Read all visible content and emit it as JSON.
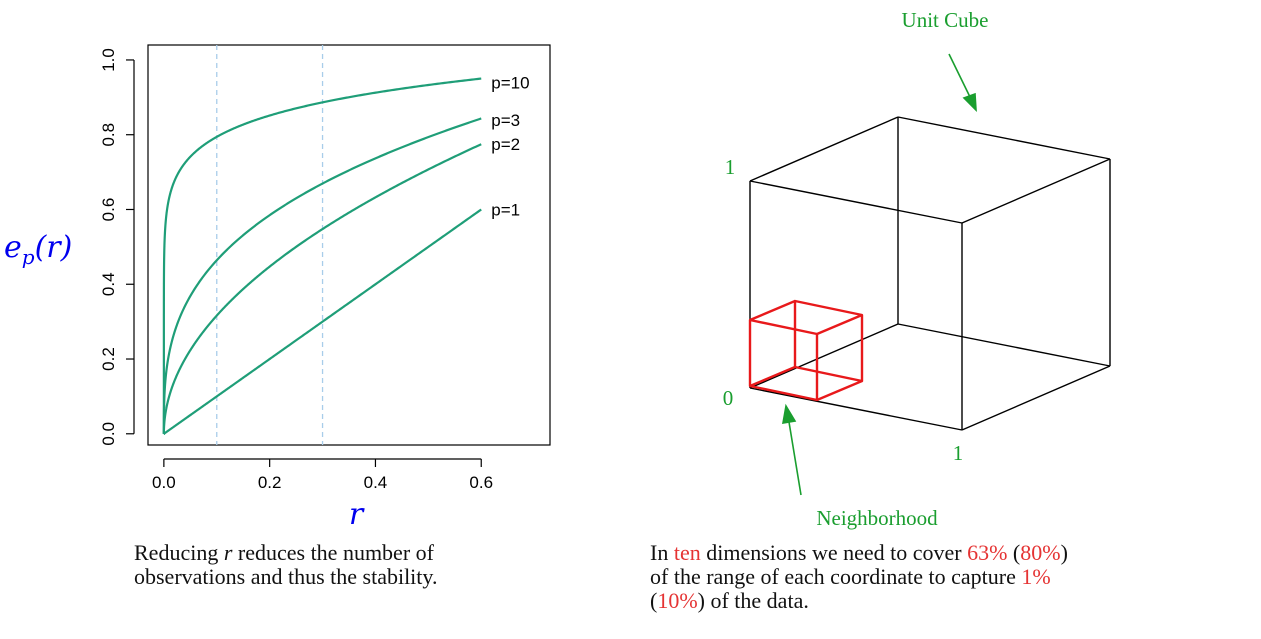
{
  "chart_data": {
    "type": "line",
    "ylabel_main": "e",
    "ylabel_sub": "p",
    "ylabel_arg": "(r)",
    "xlabel": "r",
    "xlim": [
      -0.03,
      0.73
    ],
    "ylim": [
      -0.03,
      1.04
    ],
    "xticks": [
      0.0,
      0.2,
      0.4,
      0.6
    ],
    "xtick_labels": [
      "0.0",
      "0.2",
      "0.4",
      "0.6"
    ],
    "yticks": [
      0.0,
      0.2,
      0.4,
      0.6,
      0.8,
      1.0
    ],
    "ytick_labels": [
      "0.0",
      "0.2",
      "0.4",
      "0.6",
      "0.8",
      "1.0"
    ],
    "vlines": [
      0.1,
      0.3
    ],
    "line_color": "#1f9e78",
    "vline_color": "#a8cdea",
    "formula": "e_p(r) = r^(1/p)",
    "x_domain": [
      0,
      0.6
    ],
    "series": [
      {
        "name": "p=10",
        "p": 10,
        "label_y": 0.94
      },
      {
        "name": "p=3",
        "p": 3,
        "label_y": 0.84
      },
      {
        "name": "p=2",
        "p": 2,
        "label_y": 0.775
      },
      {
        "name": "p=1",
        "p": 1,
        "label_y": 0.6
      }
    ]
  },
  "cube": {
    "unit_label": "Unit Cube",
    "neighborhood_label": "Neighborhood",
    "label_top_one": "1",
    "label_zero": "0",
    "label_bottom_one": "1",
    "cube_color": "#000000",
    "neighborhood_color": "#e8191b",
    "label_color": "#1a9e2f"
  },
  "captions": {
    "left": {
      "line1_a": "Reducing ",
      "line1_r": "r",
      "line1_b": " reduces the number of",
      "line2": "observations and thus the stability."
    },
    "right": {
      "l1_a": "In ",
      "l1_ten": "ten",
      "l1_b": " dimensions we need to cover ",
      "l1_63": "63%",
      "l1_c": " (",
      "l1_80": "80%",
      "l1_d": ")",
      "l2_a": "of the range of each coordinate to capture ",
      "l2_1": "1%",
      "l3_a": "(",
      "l3_10": "10%",
      "l3_b": ") of the data."
    }
  }
}
